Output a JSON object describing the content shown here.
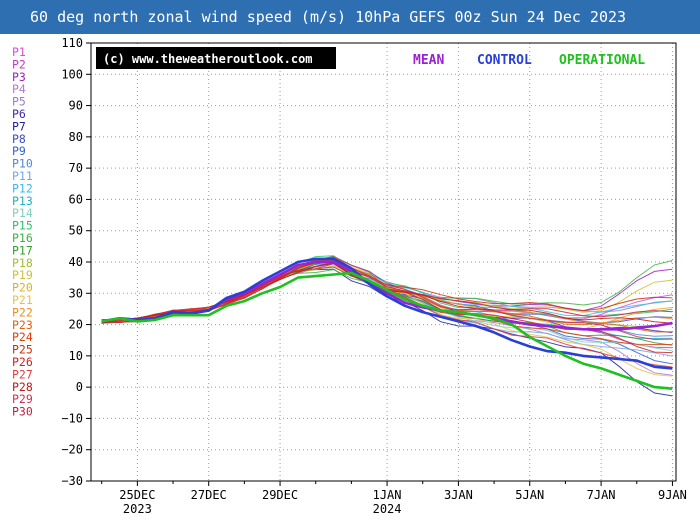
{
  "title": "60 deg north zonal wind speed (m/s) 10hPa GEFS 00z Sun 24 Dec 2023",
  "watermark": "(c) www.theweatheroutlook.com",
  "legend": [
    {
      "label": "MEAN",
      "color": "#9a22d6"
    },
    {
      "label": "CONTROL",
      "color": "#2a3fd6"
    },
    {
      "label": "OPERATIONAL",
      "color": "#1fc01f"
    }
  ],
  "members": [
    {
      "label": "P1",
      "color": "#d64fd6"
    },
    {
      "label": "P2",
      "color": "#c636c6"
    },
    {
      "label": "P3",
      "color": "#9e1fc0"
    },
    {
      "label": "P4",
      "color": "#b07ad4"
    },
    {
      "label": "P5",
      "color": "#9a7ec8"
    },
    {
      "label": "P6",
      "color": "#3e2aa8"
    },
    {
      "label": "P7",
      "color": "#2020a0"
    },
    {
      "label": "P8",
      "color": "#3a4ec0"
    },
    {
      "label": "P9",
      "color": "#3060d0"
    },
    {
      "label": "P10",
      "color": "#4a8ae0"
    },
    {
      "label": "P11",
      "color": "#70a8e6"
    },
    {
      "label": "P12",
      "color": "#40b8e8"
    },
    {
      "label": "P13",
      "color": "#20b0c0"
    },
    {
      "label": "P14",
      "color": "#80d0c0"
    },
    {
      "label": "P15",
      "color": "#30c070"
    },
    {
      "label": "P16",
      "color": "#40b040"
    },
    {
      "label": "P17",
      "color": "#30a030"
    },
    {
      "label": "P18",
      "color": "#a0c030"
    },
    {
      "label": "P19",
      "color": "#d0c030"
    },
    {
      "label": "P20",
      "color": "#e0b020"
    },
    {
      "label": "P21",
      "color": "#e8c050"
    },
    {
      "label": "P22",
      "color": "#e89020"
    },
    {
      "label": "P23",
      "color": "#e06010"
    },
    {
      "label": "P24",
      "color": "#d84010"
    },
    {
      "label": "P25",
      "color": "#c83010"
    },
    {
      "label": "P26",
      "color": "#d02020"
    },
    {
      "label": "P27",
      "color": "#e04040"
    },
    {
      "label": "P28",
      "color": "#c01818"
    },
    {
      "label": "P29",
      "color": "#d03050"
    },
    {
      "label": "P30",
      "color": "#c02040"
    }
  ],
  "chart_data": {
    "type": "line",
    "title": "60 deg north zonal wind speed (m/s) 10hPa GEFS 00z Sun 24 Dec 2023",
    "ylabel": "",
    "xlabel": "",
    "ylim": [
      -30,
      110
    ],
    "yticks": [
      -30,
      -20,
      -10,
      0,
      10,
      20,
      30,
      40,
      50,
      60,
      70,
      80,
      90,
      100,
      110
    ],
    "x_unit": "days since 24 Dec 2023 00z",
    "xlim": [
      0,
      16
    ],
    "xticks": [
      {
        "x": 1,
        "label": "25DEC",
        "sub": "2023"
      },
      {
        "x": 3,
        "label": "27DEC",
        "sub": ""
      },
      {
        "x": 5,
        "label": "29DEC",
        "sub": ""
      },
      {
        "x": 8,
        "label": "1JAN",
        "sub": "2024"
      },
      {
        "x": 10,
        "label": "3JAN",
        "sub": ""
      },
      {
        "x": 12,
        "label": "5JAN",
        "sub": ""
      },
      {
        "x": 14,
        "label": "7JAN",
        "sub": ""
      },
      {
        "x": 16,
        "label": "9JAN",
        "sub": ""
      }
    ],
    "grid": true,
    "legend_position": "top-right",
    "x": [
      0,
      0.5,
      1,
      1.5,
      2,
      2.5,
      3,
      3.5,
      4,
      4.5,
      5,
      5.5,
      6,
      6.5,
      7,
      7.5,
      8,
      8.5,
      9,
      9.5,
      10,
      10.5,
      11,
      11.5,
      12,
      12.5,
      13,
      13.5,
      14,
      14.5,
      15,
      15.5,
      16
    ],
    "common_start": [
      21,
      22,
      21.5,
      22.5,
      24,
      24.5,
      25
    ],
    "series": [
      {
        "name": "MEAN",
        "values": [
          21,
          22,
          21.5,
          22,
          24,
          23.5,
          24.5,
          28,
          30,
          33,
          36,
          39,
          40,
          40,
          37,
          33,
          30,
          27,
          25.5,
          24.5,
          24,
          23,
          22,
          21,
          20,
          19.5,
          19,
          18.5,
          18.5,
          18.5,
          19,
          19.5,
          20.5
        ]
      },
      {
        "name": "CONTROL",
        "values": [
          21,
          22,
          21.5,
          22,
          24,
          23.5,
          24.5,
          28.5,
          30.5,
          34,
          37,
          40,
          41,
          41,
          38,
          33,
          29,
          26,
          24,
          22.5,
          21,
          19.5,
          17.5,
          15,
          13,
          11.5,
          11,
          10,
          9.5,
          9,
          8.5,
          6.5,
          6
        ]
      },
      {
        "name": "OPERATIONAL",
        "values": [
          21,
          22,
          21,
          21.5,
          23,
          23,
          23,
          26,
          27.5,
          30,
          32,
          35,
          35.5,
          36,
          36.5,
          34,
          31,
          28,
          26,
          24.5,
          24,
          23,
          22,
          20,
          16,
          13,
          10,
          7.5,
          6,
          4,
          2,
          0,
          -0.5
        ]
      }
    ],
    "members": {
      "peak": [
        40,
        41,
        39,
        40,
        41,
        40,
        38,
        42,
        39,
        40,
        41,
        40,
        39,
        41,
        42,
        38,
        40,
        41,
        39,
        40,
        42,
        41,
        40,
        39,
        41,
        40,
        42,
        39,
        41,
        40
      ],
      "mid": [
        25,
        23,
        27,
        22,
        28,
        24,
        20,
        26,
        23,
        25,
        21,
        27,
        24,
        22,
        26,
        28,
        23,
        25,
        27,
        24,
        22,
        26,
        25,
        23,
        28,
        24,
        21,
        26,
        25,
        27
      ],
      "late": [
        22,
        18,
        25,
        15,
        24,
        19,
        12,
        21,
        16,
        20,
        14,
        23,
        18,
        15,
        22,
        26,
        17,
        20,
        24,
        19,
        13,
        21,
        20,
        16,
        25,
        18,
        12,
        22,
        20,
        23
      ],
      "end": [
        30,
        12,
        38,
        4,
        27,
        18,
        -3,
        22,
        8,
        16,
        10,
        28,
        15,
        12,
        25,
        40,
        14,
        20,
        34,
        26,
        3,
        22,
        18,
        13,
        29,
        11,
        6,
        21,
        15,
        24
      ]
    }
  }
}
